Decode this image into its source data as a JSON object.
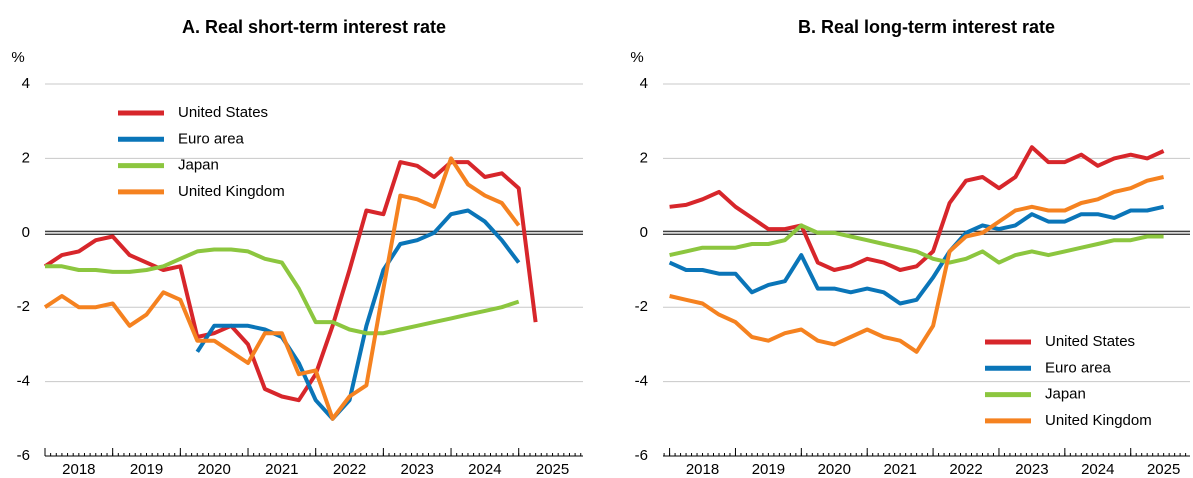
{
  "chart_data": [
    {
      "type": "line",
      "title": "A. Real short-term interest rate",
      "ylabel": "%",
      "x": [
        2018,
        2018.25,
        2018.5,
        2018.75,
        2019,
        2019.25,
        2019.5,
        2019.75,
        2020,
        2020.25,
        2020.5,
        2020.75,
        2021,
        2021.25,
        2021.5,
        2021.75,
        2022,
        2022.25,
        2022.5,
        2022.75,
        2023,
        2023.25,
        2023.5,
        2023.75,
        2024,
        2024.25,
        2024.5,
        2024.75,
        2025,
        2025.25,
        2025.5
      ],
      "xlim": [
        2018,
        2025.95
      ],
      "xticks": [
        2018,
        2019,
        2020,
        2021,
        2022,
        2023,
        2024,
        2025
      ],
      "ylim": [
        -6,
        4
      ],
      "yticks": [
        -6,
        -4,
        -2,
        0,
        2,
        4
      ],
      "grid": true,
      "legend": "upper left",
      "series": [
        {
          "name": "United States",
          "color": "#d7262b",
          "values": [
            -0.9,
            -0.6,
            -0.5,
            -0.2,
            -0.1,
            -0.6,
            -0.8,
            -1.0,
            -0.9,
            -2.8,
            -2.7,
            -2.5,
            -3.0,
            -4.2,
            -4.4,
            -4.5,
            -3.8,
            -2.5,
            -1.0,
            0.6,
            0.5,
            1.9,
            1.8,
            1.5,
            1.9,
            1.9,
            1.5,
            1.6,
            1.2,
            -2.4,
            null
          ]
        },
        {
          "name": "Euro area",
          "color": "#0a75b8",
          "values": [
            null,
            null,
            null,
            null,
            null,
            null,
            null,
            null,
            null,
            -3.2,
            -2.5,
            -2.5,
            -2.5,
            -2.6,
            -2.8,
            -3.5,
            -4.5,
            -5.0,
            -4.5,
            -2.5,
            -1.0,
            -0.3,
            -0.2,
            0.0,
            0.5,
            0.6,
            0.3,
            -0.2,
            -0.8,
            null,
            null
          ]
        },
        {
          "name": "Japan",
          "color": "#8cc63f",
          "values": [
            -0.9,
            -0.9,
            -1.0,
            -1.0,
            -1.05,
            -1.05,
            -1.0,
            -0.9,
            -0.7,
            -0.5,
            -0.45,
            -0.45,
            -0.5,
            -0.7,
            -0.8,
            -1.5,
            -2.4,
            -2.4,
            -2.6,
            -2.7,
            -2.7,
            -2.6,
            -2.5,
            -2.4,
            -2.3,
            -2.2,
            -2.1,
            -2.0,
            -1.85,
            null,
            null
          ]
        },
        {
          "name": "United Kingdom",
          "color": "#f58220",
          "values": [
            -2.0,
            -1.7,
            -2.0,
            -2.0,
            -1.9,
            -2.5,
            -2.2,
            -1.6,
            -1.8,
            -2.9,
            -2.9,
            -3.2,
            -3.5,
            -2.7,
            -2.7,
            -3.8,
            -3.7,
            -5.0,
            -4.4,
            -4.1,
            -1.5,
            1.0,
            0.9,
            0.7,
            2.0,
            1.3,
            1.0,
            0.8,
            0.2,
            null,
            null
          ]
        }
      ]
    },
    {
      "type": "line",
      "title": "B. Real long-term interest rate",
      "ylabel": "%",
      "x": [
        2018,
        2018.25,
        2018.5,
        2018.75,
        2019,
        2019.25,
        2019.5,
        2019.75,
        2020,
        2020.25,
        2020.5,
        2020.75,
        2021,
        2021.25,
        2021.5,
        2021.75,
        2022,
        2022.25,
        2022.5,
        2022.75,
        2023,
        2023.25,
        2023.5,
        2023.75,
        2024,
        2024.25,
        2024.5,
        2024.75,
        2025,
        2025.25,
        2025.5
      ],
      "xlim": [
        2017.9,
        2025.9
      ],
      "xticks": [
        2018,
        2019,
        2020,
        2021,
        2022,
        2023,
        2024,
        2025
      ],
      "ylim": [
        -6,
        4
      ],
      "yticks": [
        -6,
        -4,
        -2,
        0,
        2,
        4
      ],
      "grid": true,
      "legend": "lower right",
      "series": [
        {
          "name": "United States",
          "color": "#d7262b",
          "values": [
            0.7,
            0.75,
            0.9,
            1.1,
            0.7,
            0.4,
            0.1,
            0.1,
            0.2,
            -0.8,
            -1.0,
            -0.9,
            -0.7,
            -0.8,
            -1.0,
            -0.9,
            -0.5,
            0.8,
            1.4,
            1.5,
            1.2,
            1.5,
            2.3,
            1.9,
            1.9,
            2.1,
            1.8,
            2.0,
            2.1,
            2.0,
            2.2
          ]
        },
        {
          "name": "Euro area",
          "color": "#0a75b8",
          "values": [
            -0.8,
            -1.0,
            -1.0,
            -1.1,
            -1.1,
            -1.6,
            -1.4,
            -1.3,
            -0.6,
            -1.5,
            -1.5,
            -1.6,
            -1.5,
            -1.6,
            -1.9,
            -1.8,
            -1.2,
            -0.5,
            0.0,
            0.2,
            0.1,
            0.2,
            0.5,
            0.3,
            0.3,
            0.5,
            0.5,
            0.4,
            0.6,
            0.6,
            0.7
          ]
        },
        {
          "name": "Japan",
          "color": "#8cc63f",
          "values": [
            -0.6,
            -0.5,
            -0.4,
            -0.4,
            -0.4,
            -0.3,
            -0.3,
            -0.2,
            0.2,
            0.0,
            0.0,
            -0.1,
            -0.2,
            -0.3,
            -0.4,
            -0.5,
            -0.7,
            -0.8,
            -0.7,
            -0.5,
            -0.8,
            -0.6,
            -0.5,
            -0.6,
            -0.5,
            -0.4,
            -0.3,
            -0.2,
            -0.2,
            -0.1,
            -0.1
          ]
        },
        {
          "name": "United Kingdom",
          "color": "#f58220",
          "values": [
            -1.7,
            -1.8,
            -1.9,
            -2.2,
            -2.4,
            -2.8,
            -2.9,
            -2.7,
            -2.6,
            -2.9,
            -3.0,
            -2.8,
            -2.6,
            -2.8,
            -2.9,
            -3.2,
            -2.5,
            -0.5,
            -0.1,
            0.0,
            0.3,
            0.6,
            0.7,
            0.6,
            0.6,
            0.8,
            0.9,
            1.1,
            1.2,
            1.4,
            1.5
          ]
        }
      ]
    }
  ]
}
